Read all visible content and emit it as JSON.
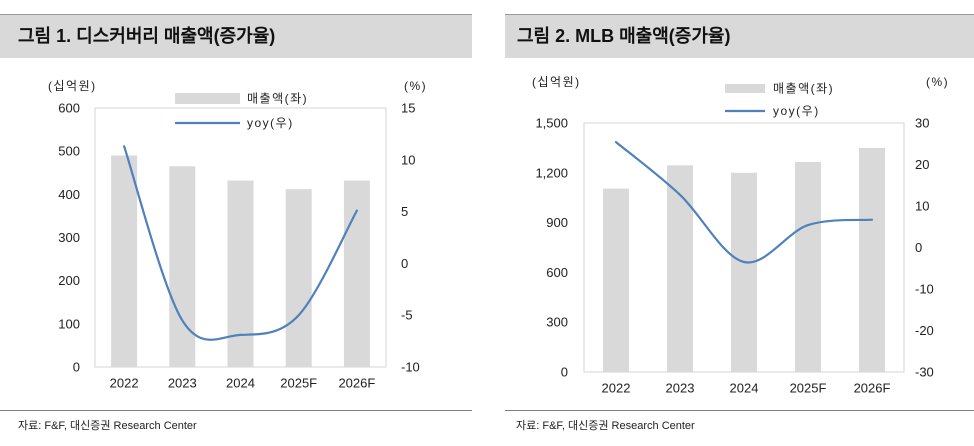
{
  "chart_data": [
    {
      "type": "bar",
      "title": "그림 1. 디스커버리 매출액(증가율)",
      "source": "자료: F&F, 대신증권 Research Center",
      "categories": [
        "2022",
        "2023",
        "2024",
        "2025F",
        "2026F"
      ],
      "series": [
        {
          "name": "매출액(좌)",
          "type": "bar",
          "axis": "left",
          "values": [
            490,
            465,
            432,
            412,
            432
          ]
        },
        {
          "name": "yoy(우)",
          "type": "line",
          "axis": "right",
          "values": [
            11.3,
            -5.5,
            -6.9,
            -5.0,
            5.1
          ]
        }
      ],
      "y_left": {
        "label": "(십억원)",
        "min": 0,
        "max": 600,
        "ticks": [
          0,
          100,
          200,
          300,
          400,
          500,
          600
        ],
        "tick_labels": [
          "0",
          "100",
          "200",
          "300",
          "400",
          "500",
          "600"
        ]
      },
      "y_right": {
        "label": "(%)",
        "min": -10,
        "max": 15,
        "ticks": [
          -10,
          -5,
          0,
          5,
          10,
          15
        ],
        "tick_labels": [
          "-10",
          "-5",
          "0",
          "5",
          "10",
          "15"
        ]
      },
      "legend": "top-center",
      "grid": false,
      "colors": {
        "bar": "#d9d9d9",
        "line": "#4f81bd"
      }
    },
    {
      "type": "bar",
      "title": "그림 2. MLB 매출액(증가율)",
      "source": "자료: F&F, 대신증권 Research Center",
      "categories": [
        "2022",
        "2023",
        "2024",
        "2025F",
        "2026F"
      ],
      "series": [
        {
          "name": "매출액(좌)",
          "type": "bar",
          "axis": "left",
          "values": [
            1105,
            1245,
            1200,
            1265,
            1350
          ]
        },
        {
          "name": "yoy(우)",
          "type": "line",
          "axis": "right",
          "values": [
            25.4,
            12.7,
            -3.5,
            5.4,
            6.7
          ]
        }
      ],
      "y_left": {
        "label": "(십억원)",
        "min": 0,
        "max": 1500,
        "ticks": [
          0,
          300,
          600,
          900,
          1200,
          1500
        ],
        "tick_labels": [
          "0",
          "300",
          "600",
          "900",
          "1,200",
          "1,500"
        ]
      },
      "y_right": {
        "label": "(%)",
        "min": -30,
        "max": 30,
        "ticks": [
          -30,
          -20,
          -10,
          0,
          10,
          20,
          30
        ],
        "tick_labels": [
          "-30",
          "-20",
          "-10",
          "0",
          "10",
          "20",
          "30"
        ]
      },
      "legend": "top-center",
      "grid": false,
      "colors": {
        "bar": "#d9d9d9",
        "line": "#4f81bd"
      }
    }
  ]
}
